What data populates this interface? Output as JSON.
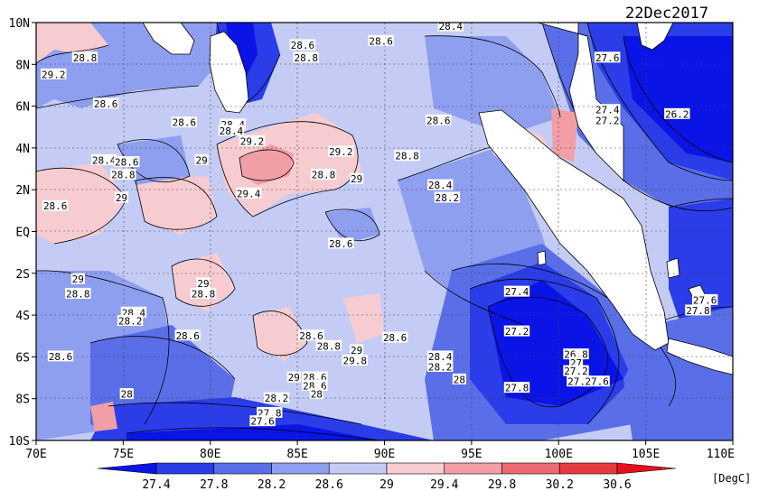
{
  "title": "22Dec2017",
  "unit": "[DegC]",
  "lat_labels": [
    "10N",
    "8N",
    "6N",
    "4N",
    "2N",
    "EQ",
    "2S",
    "4S",
    "6S",
    "8S",
    "10S"
  ],
  "lon_labels": [
    "70E",
    "75E",
    "80E",
    "85E",
    "90E",
    "95E",
    "100E",
    "105E",
    "110E"
  ],
  "colorbar": {
    "tick_labels": [
      "27.4",
      "27.8",
      "28.2",
      "28.6",
      "29",
      "29.4",
      "29.8",
      "30.2",
      "30.6"
    ],
    "colors": [
      "#0a14e6",
      "#2a3de8",
      "#5a6ee8",
      "#8e9ff0",
      "#c4ccf6",
      "#f7ccd0",
      "#f29ea6",
      "#ec6a72",
      "#e63a3e",
      "#e6101a"
    ]
  },
  "contour_labels": [
    {
      "text": "28.8",
      "lon": 72.8,
      "lat": 8.3
    },
    {
      "text": "29.2",
      "lon": 71.0,
      "lat": 7.5
    },
    {
      "text": "28.6",
      "lon": 74.0,
      "lat": 6.1
    },
    {
      "text": "28.6",
      "lon": 78.5,
      "lat": 5.2
    },
    {
      "text": "28.4",
      "lon": 81.3,
      "lat": 5.1
    },
    {
      "text": "28.4",
      "lon": 81.2,
      "lat": 4.8
    },
    {
      "text": "29.2",
      "lon": 82.4,
      "lat": 4.3
    },
    {
      "text": "28.4",
      "lon": 73.9,
      "lat": 3.4
    },
    {
      "text": "28.6",
      "lon": 75.2,
      "lat": 3.3
    },
    {
      "text": "28.8",
      "lon": 75.0,
      "lat": 2.7
    },
    {
      "text": "29",
      "lon": 79.5,
      "lat": 3.4
    },
    {
      "text": "29.2",
      "lon": 87.5,
      "lat": 3.8
    },
    {
      "text": "28.8",
      "lon": 86.5,
      "lat": 2.7
    },
    {
      "text": "29",
      "lon": 88.4,
      "lat": 2.5
    },
    {
      "text": "29.4",
      "lon": 82.2,
      "lat": 1.8
    },
    {
      "text": "29",
      "lon": 74.9,
      "lat": 1.6
    },
    {
      "text": "28.6",
      "lon": 71.1,
      "lat": 1.2
    },
    {
      "text": "28.6",
      "lon": 87.5,
      "lat": -0.6
    },
    {
      "text": "28.8",
      "lon": 91.3,
      "lat": 3.6
    },
    {
      "text": "28.6",
      "lon": 93.1,
      "lat": 5.3
    },
    {
      "text": "28.6",
      "lon": 85.3,
      "lat": 8.9
    },
    {
      "text": "28.8",
      "lon": 85.5,
      "lat": 8.3
    },
    {
      "text": "28.6",
      "lon": 89.8,
      "lat": 9.1
    },
    {
      "text": "28.4",
      "lon": 93.8,
      "lat": 9.8
    },
    {
      "text": "28.4",
      "lon": 93.2,
      "lat": 2.2
    },
    {
      "text": "28.2",
      "lon": 93.6,
      "lat": 1.6
    },
    {
      "text": "27.6",
      "lon": 102.8,
      "lat": 8.3
    },
    {
      "text": "27.4",
      "lon": 102.8,
      "lat": 5.8
    },
    {
      "text": "27.2",
      "lon": 102.8,
      "lat": 5.3
    },
    {
      "text": "26.2",
      "lon": 106.8,
      "lat": 5.6
    },
    {
      "text": "29",
      "lon": 72.4,
      "lat": -2.3
    },
    {
      "text": "28.8",
      "lon": 72.4,
      "lat": -3.0
    },
    {
      "text": "29",
      "lon": 79.6,
      "lat": -2.5
    },
    {
      "text": "28.8",
      "lon": 79.6,
      "lat": -3.0
    },
    {
      "text": "28.4",
      "lon": 75.6,
      "lat": -3.9
    },
    {
      "text": "28.2",
      "lon": 75.4,
      "lat": -4.3
    },
    {
      "text": "28.6",
      "lon": 78.7,
      "lat": -5.0
    },
    {
      "text": "28.6",
      "lon": 71.4,
      "lat": -6.0
    },
    {
      "text": "28.6",
      "lon": 85.8,
      "lat": -5.0
    },
    {
      "text": "28.8",
      "lon": 86.8,
      "lat": -5.5
    },
    {
      "text": "29",
      "lon": 88.4,
      "lat": -5.7
    },
    {
      "text": "29.8",
      "lon": 88.3,
      "lat": -6.2
    },
    {
      "text": "28.6",
      "lon": 90.6,
      "lat": -5.1
    },
    {
      "text": "28.4",
      "lon": 93.2,
      "lat": -6.0
    },
    {
      "text": "28.2",
      "lon": 93.2,
      "lat": -6.5
    },
    {
      "text": "29",
      "lon": 84.8,
      "lat": -7.0
    },
    {
      "text": "28.6",
      "lon": 86.0,
      "lat": -7.0
    },
    {
      "text": "28.6",
      "lon": 86.0,
      "lat": -7.4
    },
    {
      "text": "28",
      "lon": 86.1,
      "lat": -7.8
    },
    {
      "text": "28",
      "lon": 75.2,
      "lat": -7.8
    },
    {
      "text": "28.2",
      "lon": 83.8,
      "lat": -8.0
    },
    {
      "text": "27.8",
      "lon": 83.4,
      "lat": -8.7
    },
    {
      "text": "27.6",
      "lon": 83.0,
      "lat": -9.1
    },
    {
      "text": "28",
      "lon": 94.3,
      "lat": -7.1
    },
    {
      "text": "27.8",
      "lon": 97.6,
      "lat": -7.5
    },
    {
      "text": "27.4",
      "lon": 97.6,
      "lat": -2.9
    },
    {
      "text": "27.2",
      "lon": 97.6,
      "lat": -4.8
    },
    {
      "text": "26.8",
      "lon": 101.0,
      "lat": -5.9
    },
    {
      "text": "27",
      "lon": 101.0,
      "lat": -6.3
    },
    {
      "text": "27.2",
      "lon": 101.0,
      "lat": -6.7
    },
    {
      "text": "27.4",
      "lon": 101.2,
      "lat": -7.2
    },
    {
      "text": "27.6",
      "lon": 102.2,
      "lat": -7.2
    },
    {
      "text": "27.6",
      "lon": 108.4,
      "lat": -3.3
    },
    {
      "text": "27.8",
      "lon": 108.0,
      "lat": -3.8
    }
  ]
}
